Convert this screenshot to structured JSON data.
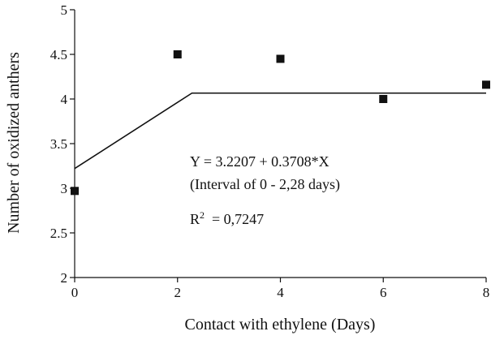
{
  "chart_data": {
    "type": "scatter",
    "xlabel": "Contact with ethylene (Days)",
    "ylabel": "Number of oxidized anthers",
    "xlim": [
      0,
      8
    ],
    "ylim": [
      2,
      5
    ],
    "x_ticks": [
      0,
      2,
      4,
      6,
      8
    ],
    "y_ticks": [
      2,
      2.5,
      3,
      3.5,
      4,
      4.5,
      5
    ],
    "x_tick_labels": [
      "0",
      "2",
      "4",
      "6",
      "8"
    ],
    "y_tick_labels": [
      "2",
      "2.5",
      "3",
      "3.5",
      "4",
      "4.5",
      "5"
    ],
    "series": [
      {
        "kind": "points",
        "marker": "square",
        "color": "#111111",
        "x": [
          0,
          2,
          4,
          6,
          8
        ],
        "y": [
          2.97,
          4.5,
          4.45,
          4.0,
          4.16
        ]
      },
      {
        "kind": "line",
        "color": "#111111",
        "x": [
          0,
          2.28,
          8
        ],
        "y": [
          3.2207,
          4.066,
          4.066
        ]
      }
    ],
    "annotations": {
      "equation": "Y = 3.2207 + 0.3708*X",
      "interval": "(Interval of 0 - 2,28 days)",
      "r2_base": "R",
      "r2_exp": "2",
      "r2_value": "  = 0,7247"
    },
    "grid": false,
    "legend": "none"
  }
}
